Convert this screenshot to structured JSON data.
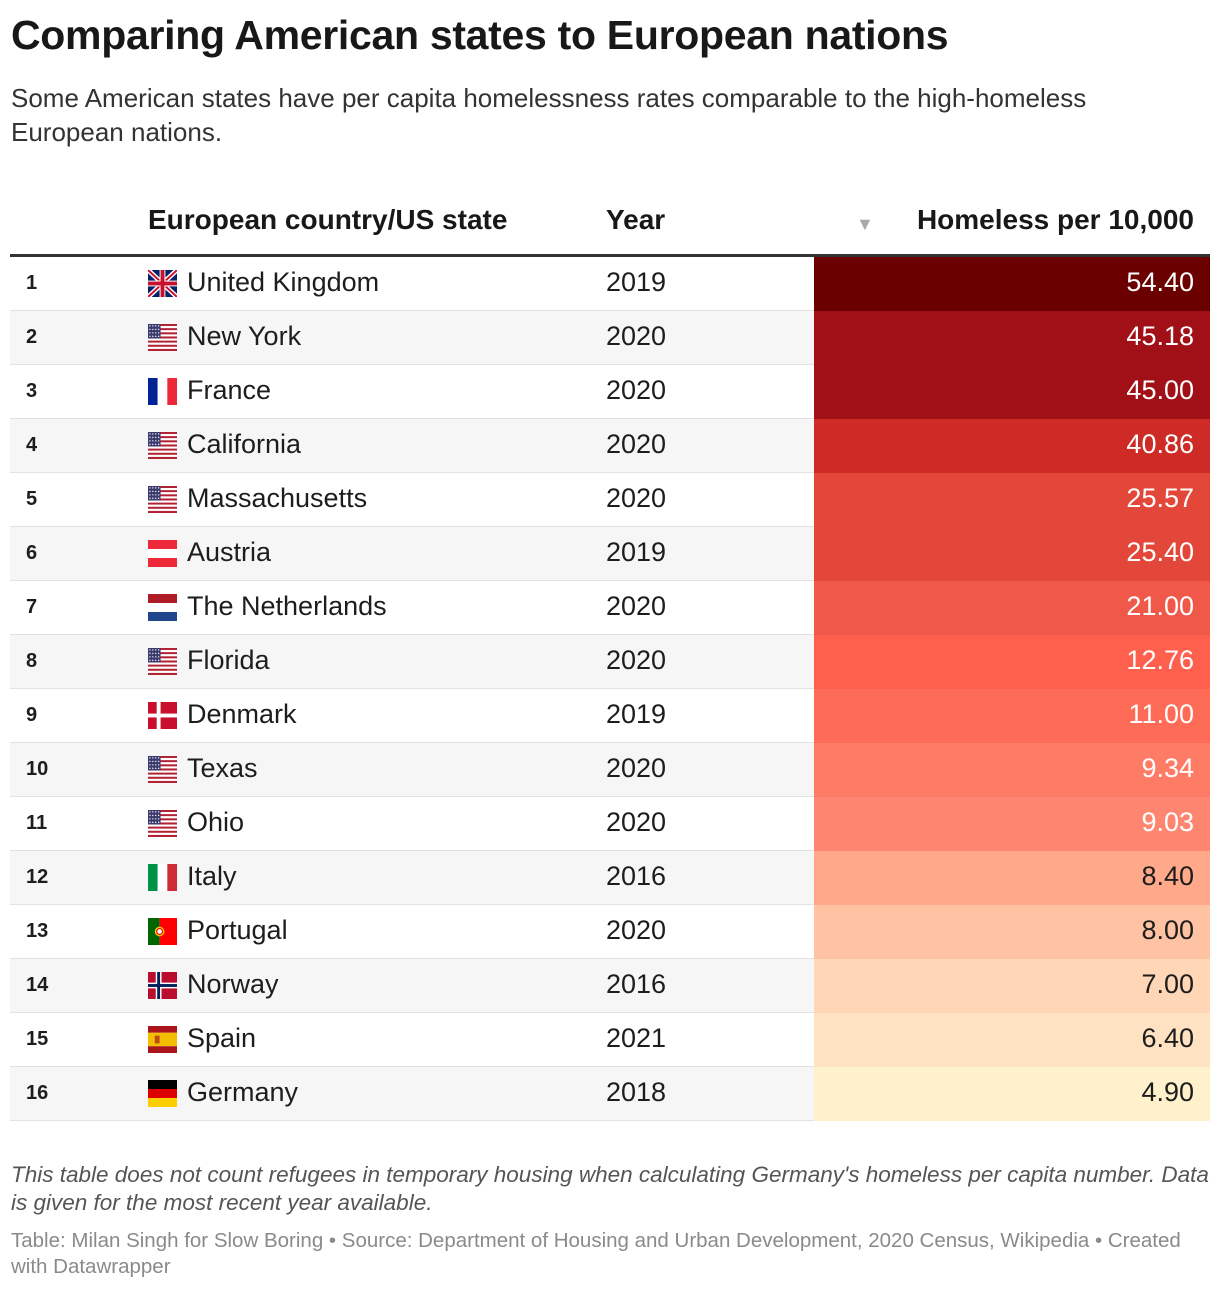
{
  "header": {
    "title": "Comparing American states to European nations",
    "subtitle": "Some American states have per capita homelessness rates comparable to the high-homeless European nations."
  },
  "table": {
    "columns": {
      "name": "European country/US state",
      "year": "Year",
      "value": "Homeless per 10,000",
      "sort_icon": "sort-descending-icon"
    }
  },
  "chart_data": {
    "type": "table",
    "columns": [
      "European country/US state",
      "Year",
      "Homeless per 10,000"
    ],
    "rows": [
      {
        "rank": "1",
        "name": "United Kingdom",
        "flag": "uk",
        "year": "2019",
        "value": "54.40",
        "num": 54.4
      },
      {
        "rank": "2",
        "name": "New York",
        "flag": "us",
        "year": "2020",
        "value": "45.18",
        "num": 45.18
      },
      {
        "rank": "3",
        "name": "France",
        "flag": "fr",
        "year": "2020",
        "value": "45.00",
        "num": 45.0
      },
      {
        "rank": "4",
        "name": "California",
        "flag": "us",
        "year": "2020",
        "value": "40.86",
        "num": 40.86
      },
      {
        "rank": "5",
        "name": "Massachusetts",
        "flag": "us",
        "year": "2020",
        "value": "25.57",
        "num": 25.57
      },
      {
        "rank": "6",
        "name": "Austria",
        "flag": "at",
        "year": "2019",
        "value": "25.40",
        "num": 25.4
      },
      {
        "rank": "7",
        "name": "The Netherlands",
        "flag": "nl",
        "year": "2020",
        "value": "21.00",
        "num": 21.0
      },
      {
        "rank": "8",
        "name": "Florida",
        "flag": "us",
        "year": "2020",
        "value": "12.76",
        "num": 12.76
      },
      {
        "rank": "9",
        "name": "Denmark",
        "flag": "dk",
        "year": "2019",
        "value": "11.00",
        "num": 11.0
      },
      {
        "rank": "10",
        "name": "Texas",
        "flag": "us",
        "year": "2020",
        "value": "9.34",
        "num": 9.34
      },
      {
        "rank": "11",
        "name": "Ohio",
        "flag": "us",
        "year": "2020",
        "value": "9.03",
        "num": 9.03
      },
      {
        "rank": "12",
        "name": "Italy",
        "flag": "it",
        "year": "2016",
        "value": "8.40",
        "num": 8.4
      },
      {
        "rank": "13",
        "name": "Portugal",
        "flag": "pt",
        "year": "2020",
        "value": "8.00",
        "num": 8.0
      },
      {
        "rank": "14",
        "name": "Norway",
        "flag": "no",
        "year": "2016",
        "value": "7.00",
        "num": 7.0
      },
      {
        "rank": "15",
        "name": "Spain",
        "flag": "es",
        "year": "2021",
        "value": "6.40",
        "num": 6.4
      },
      {
        "rank": "16",
        "name": "Germany",
        "flag": "de",
        "year": "2018",
        "value": "4.90",
        "num": 4.9
      }
    ],
    "cell_colors": [
      "#6b0000",
      "#a01016",
      "#a01016",
      "#ce2a26",
      "#e3473a",
      "#e3473a",
      "#f0584a",
      "#ff5f4d",
      "#fe6b57",
      "#fe7b65",
      "#fe8670",
      "#ffa98a",
      "#ffc2a3",
      "#ffd7b7",
      "#ffe2c2",
      "#fff1cc"
    ]
  },
  "footer": {
    "notes": "This table does not count refugees in temporary housing when calculating Germany's homeless per capita number. Data is given for the most recent year available.",
    "byline": "Table: Milan Singh for Slow Boring • Source: Department of Housing and Urban Development, 2020 Census, Wikipedia • Created with Datawrapper"
  }
}
